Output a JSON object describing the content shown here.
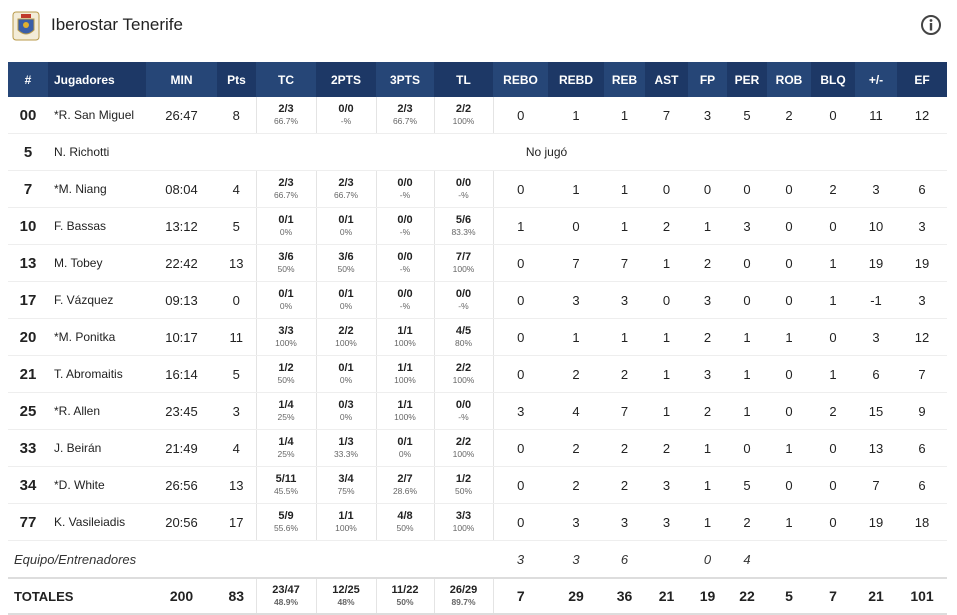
{
  "header": {
    "title": "Iberostar Tenerife"
  },
  "table": {
    "columns": [
      "#",
      "Jugadores",
      "MIN",
      "Pts",
      "TC",
      "2PTS",
      "3PTS",
      "TL",
      "REBO",
      "REBD",
      "REB",
      "AST",
      "FP",
      "PER",
      "ROB",
      "BLQ",
      "+/-",
      "EF"
    ],
    "rows": [
      {
        "cells": [
          "00",
          "*R. San Miguel",
          "26:47",
          8,
          {
            "made": "2/3",
            "pct": "66.7%"
          },
          {
            "made": "0/0",
            "pct": "-%"
          },
          {
            "made": "2/3",
            "pct": "66.7%"
          },
          {
            "made": "2/2",
            "pct": "100%"
          },
          0,
          1,
          1,
          7,
          3,
          5,
          2,
          0,
          11,
          12
        ]
      },
      {
        "cells": [
          "5",
          "N. Richotti"
        ],
        "note": "No jugó"
      },
      {
        "cells": [
          "7",
          "*M. Niang",
          "08:04",
          4,
          {
            "made": "2/3",
            "pct": "66.7%"
          },
          {
            "made": "2/3",
            "pct": "66.7%"
          },
          {
            "made": "0/0",
            "pct": "-%"
          },
          {
            "made": "0/0",
            "pct": "-%"
          },
          0,
          1,
          1,
          0,
          0,
          0,
          0,
          2,
          3,
          6
        ]
      },
      {
        "cells": [
          "10",
          "F. Bassas",
          "13:12",
          5,
          {
            "made": "0/1",
            "pct": "0%"
          },
          {
            "made": "0/1",
            "pct": "0%"
          },
          {
            "made": "0/0",
            "pct": "-%"
          },
          {
            "made": "5/6",
            "pct": "83.3%"
          },
          1,
          0,
          1,
          2,
          1,
          3,
          0,
          0,
          10,
          3
        ]
      },
      {
        "cells": [
          "13",
          "M. Tobey",
          "22:42",
          13,
          {
            "made": "3/6",
            "pct": "50%"
          },
          {
            "made": "3/6",
            "pct": "50%"
          },
          {
            "made": "0/0",
            "pct": "-%"
          },
          {
            "made": "7/7",
            "pct": "100%"
          },
          0,
          7,
          7,
          1,
          2,
          0,
          0,
          1,
          19,
          19
        ]
      },
      {
        "cells": [
          "17",
          "F. Vázquez",
          "09:13",
          0,
          {
            "made": "0/1",
            "pct": "0%"
          },
          {
            "made": "0/1",
            "pct": "0%"
          },
          {
            "made": "0/0",
            "pct": "-%"
          },
          {
            "made": "0/0",
            "pct": "-%"
          },
          0,
          3,
          3,
          0,
          3,
          0,
          0,
          1,
          -1,
          3
        ]
      },
      {
        "cells": [
          "20",
          "*M. Ponitka",
          "10:17",
          11,
          {
            "made": "3/3",
            "pct": "100%"
          },
          {
            "made": "2/2",
            "pct": "100%"
          },
          {
            "made": "1/1",
            "pct": "100%"
          },
          {
            "made": "4/5",
            "pct": "80%"
          },
          0,
          1,
          1,
          1,
          2,
          1,
          1,
          0,
          3,
          12
        ]
      },
      {
        "cells": [
          "21",
          "T. Abromaitis",
          "16:14",
          5,
          {
            "made": "1/2",
            "pct": "50%"
          },
          {
            "made": "0/1",
            "pct": "0%"
          },
          {
            "made": "1/1",
            "pct": "100%"
          },
          {
            "made": "2/2",
            "pct": "100%"
          },
          0,
          2,
          2,
          1,
          3,
          1,
          0,
          1,
          6,
          7
        ]
      },
      {
        "cells": [
          "25",
          "*R. Allen",
          "23:45",
          3,
          {
            "made": "1/4",
            "pct": "25%"
          },
          {
            "made": "0/3",
            "pct": "0%"
          },
          {
            "made": "1/1",
            "pct": "100%"
          },
          {
            "made": "0/0",
            "pct": "-%"
          },
          3,
          4,
          7,
          1,
          2,
          1,
          0,
          2,
          15,
          9
        ]
      },
      {
        "cells": [
          "33",
          "J. Beirán",
          "21:49",
          4,
          {
            "made": "1/4",
            "pct": "25%"
          },
          {
            "made": "1/3",
            "pct": "33.3%"
          },
          {
            "made": "0/1",
            "pct": "0%"
          },
          {
            "made": "2/2",
            "pct": "100%"
          },
          0,
          2,
          2,
          2,
          1,
          0,
          1,
          0,
          13,
          6
        ]
      },
      {
        "cells": [
          "34",
          "*D. White",
          "26:56",
          13,
          {
            "made": "5/11",
            "pct": "45.5%"
          },
          {
            "made": "3/4",
            "pct": "75%"
          },
          {
            "made": "2/7",
            "pct": "28.6%"
          },
          {
            "made": "1/2",
            "pct": "50%"
          },
          0,
          2,
          2,
          3,
          1,
          5,
          0,
          0,
          7,
          6
        ]
      },
      {
        "cells": [
          "77",
          "K. Vasileiadis",
          "20:56",
          17,
          {
            "made": "5/9",
            "pct": "55.6%"
          },
          {
            "made": "1/1",
            "pct": "100%"
          },
          {
            "made": "4/8",
            "pct": "50%"
          },
          {
            "made": "3/3",
            "pct": "100%"
          },
          0,
          3,
          3,
          3,
          1,
          2,
          1,
          0,
          19,
          18
        ]
      }
    ],
    "team": {
      "label": "Equipo/Entrenadores",
      "rebo": 3,
      "rebd": 3,
      "reb": 6,
      "fp": 0,
      "per": 4
    },
    "totals": {
      "label": "TOTALES",
      "cells": [
        200,
        83,
        {
          "made": "23/47",
          "pct": "48.9%"
        },
        {
          "made": "12/25",
          "pct": "48%"
        },
        {
          "made": "11/22",
          "pct": "50%"
        },
        {
          "made": "26/29",
          "pct": "89.7%"
        },
        7,
        29,
        36,
        21,
        19,
        22,
        5,
        7,
        21,
        101
      ]
    }
  }
}
